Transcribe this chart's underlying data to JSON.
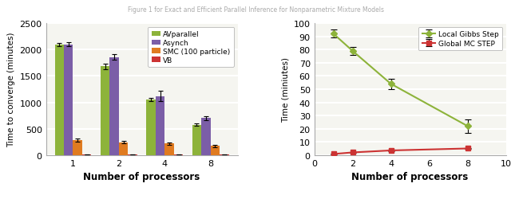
{
  "left": {
    "processors": [
      1,
      2,
      4,
      8
    ],
    "avparallel": [
      2100,
      1680,
      1050,
      575
    ],
    "avparallel_err": [
      30,
      50,
      30,
      20
    ],
    "asynch": [
      2100,
      1860,
      1120,
      700
    ],
    "asynch_err": [
      40,
      50,
      100,
      40
    ],
    "smc": [
      290,
      245,
      220,
      175
    ],
    "smc_err": [
      30,
      25,
      25,
      25
    ],
    "vb": [
      8,
      8,
      8,
      8
    ],
    "vb_err": [
      3,
      3,
      3,
      3
    ],
    "colors": {
      "avparallel": "#8db33a",
      "asynch": "#7b5ea7",
      "smc": "#e07b20",
      "vb": "#cc3333"
    },
    "ylabel": "Time to converge (minutes)",
    "xlabel": "Number of processors",
    "ylim": [
      0,
      2500
    ],
    "yticks": [
      0,
      500,
      1000,
      1500,
      2000,
      2500
    ],
    "legend": [
      "AVparallel",
      "Asynch",
      "SMC (100 particle)",
      "VB"
    ]
  },
  "right": {
    "processors": [
      1,
      2,
      4,
      8
    ],
    "local_gibbs": [
      92,
      79,
      54,
      22
    ],
    "local_gibbs_err": [
      3,
      3,
      4,
      5
    ],
    "global_mc": [
      0.8,
      2,
      3.5,
      5
    ],
    "global_mc_err": [
      0.2,
      0.3,
      0.4,
      0.5
    ],
    "colors": {
      "local_gibbs": "#8db33a",
      "global_mc": "#cc3333"
    },
    "ylabel": "Time (miniutes)",
    "xlabel": "Number of processors",
    "ylim": [
      0,
      100
    ],
    "yticks": [
      0,
      10,
      20,
      30,
      40,
      50,
      60,
      70,
      80,
      90,
      100
    ],
    "xlim": [
      0,
      10
    ],
    "xticks": [
      0,
      2,
      4,
      6,
      8,
      10
    ],
    "legend": [
      "Local Gibbs Step",
      "Global MC STEP"
    ]
  },
  "bg_color": "#ffffff",
  "plot_bg_color": "#f5f5f0",
  "grid_color": "#ffffff",
  "title": "Figure 1 for Exact and Efficient Parallel Inference for Nonparametric Mixture Models"
}
